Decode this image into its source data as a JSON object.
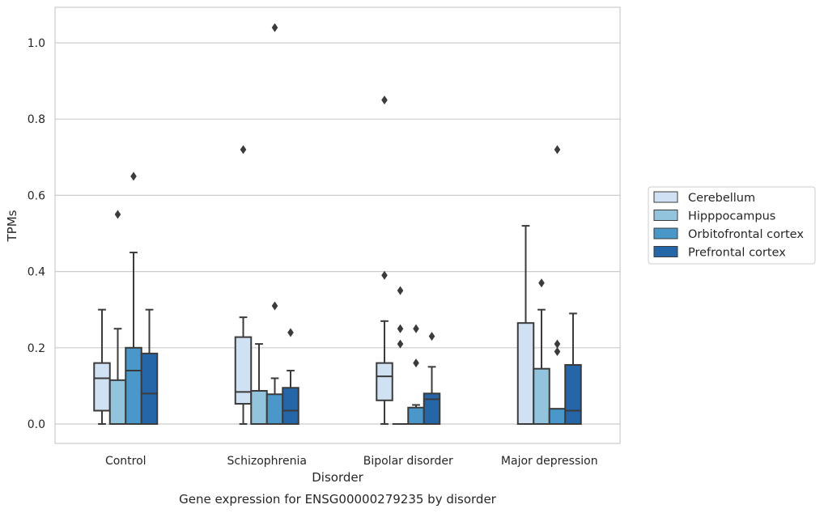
{
  "chart_data": {
    "type": "box",
    "title": "Gene expression for ENSG00000279235 by disorder",
    "xlabel": "Disorder",
    "ylabel": "TPMs",
    "ylim": [
      -0.05,
      1.09
    ],
    "yticks": [
      "0.0",
      "0.2",
      "0.4",
      "0.6",
      "0.8",
      "1.0"
    ],
    "grid": true,
    "legend_position": "right",
    "categories": [
      "Control",
      "Schizophrenia",
      "Bipolar disorder",
      "Major depression"
    ],
    "series": [
      {
        "name": "Cerebellum",
        "color": "#cfe1f2",
        "boxes": [
          {
            "whislo": 0.0,
            "q1": 0.035,
            "med": 0.12,
            "q3": 0.16,
            "whishi": 0.3,
            "fliers": []
          },
          {
            "whislo": 0.0,
            "q1": 0.053,
            "med": 0.084,
            "q3": 0.228,
            "whishi": 0.28,
            "fliers": [
              0.72
            ]
          },
          {
            "whislo": 0.0,
            "q1": 0.062,
            "med": 0.125,
            "q3": 0.16,
            "whishi": 0.27,
            "fliers": [
              0.39,
              0.85
            ]
          },
          {
            "whislo": 0.0,
            "q1": 0.0,
            "med": 0.0,
            "q3": 0.265,
            "whishi": 0.52,
            "fliers": []
          }
        ]
      },
      {
        "name": "Hipppocampus",
        "color": "#93c4de",
        "boxes": [
          {
            "whislo": 0.0,
            "q1": 0.0,
            "med": 0.0,
            "q3": 0.115,
            "whishi": 0.25,
            "fliers": [
              0.55
            ]
          },
          {
            "whislo": 0.0,
            "q1": 0.0,
            "med": 0.0,
            "q3": 0.087,
            "whishi": 0.21,
            "fliers": []
          },
          {
            "whislo": 0.0,
            "q1": 0.0,
            "med": 0.0,
            "q3": 0.0,
            "whishi": 0.0,
            "fliers": [
              0.21,
              0.25,
              0.35
            ]
          },
          {
            "whislo": 0.0,
            "q1": 0.0,
            "med": 0.0,
            "q3": 0.145,
            "whishi": 0.3,
            "fliers": [
              0.37
            ]
          }
        ]
      },
      {
        "name": "Orbitofrontal cortex",
        "color": "#4a98c9",
        "boxes": [
          {
            "whislo": 0.0,
            "q1": 0.0,
            "med": 0.14,
            "q3": 0.2,
            "whishi": 0.45,
            "fliers": [
              0.65
            ]
          },
          {
            "whislo": 0.0,
            "q1": 0.0,
            "med": 0.0,
            "q3": 0.078,
            "whishi": 0.12,
            "fliers": [
              0.31,
              1.04
            ]
          },
          {
            "whislo": 0.0,
            "q1": 0.0,
            "med": 0.0,
            "q3": 0.043,
            "whishi": 0.05,
            "fliers": [
              0.16,
              0.25
            ]
          },
          {
            "whislo": 0.0,
            "q1": 0.0,
            "med": 0.0,
            "q3": 0.04,
            "whishi": 0.04,
            "fliers": [
              0.19,
              0.21,
              0.72
            ]
          }
        ]
      },
      {
        "name": "Prefrontal cortex",
        "color": "#2566a8",
        "boxes": [
          {
            "whislo": 0.0,
            "q1": 0.0,
            "med": 0.08,
            "q3": 0.185,
            "whishi": 0.3,
            "fliers": []
          },
          {
            "whislo": 0.0,
            "q1": 0.0,
            "med": 0.035,
            "q3": 0.095,
            "whishi": 0.14,
            "fliers": [
              0.24
            ]
          },
          {
            "whislo": 0.0,
            "q1": 0.0,
            "med": 0.065,
            "q3": 0.08,
            "whishi": 0.15,
            "fliers": [
              0.23
            ]
          },
          {
            "whislo": 0.0,
            "q1": 0.0,
            "med": 0.035,
            "q3": 0.155,
            "whishi": 0.29,
            "fliers": []
          }
        ]
      }
    ]
  }
}
